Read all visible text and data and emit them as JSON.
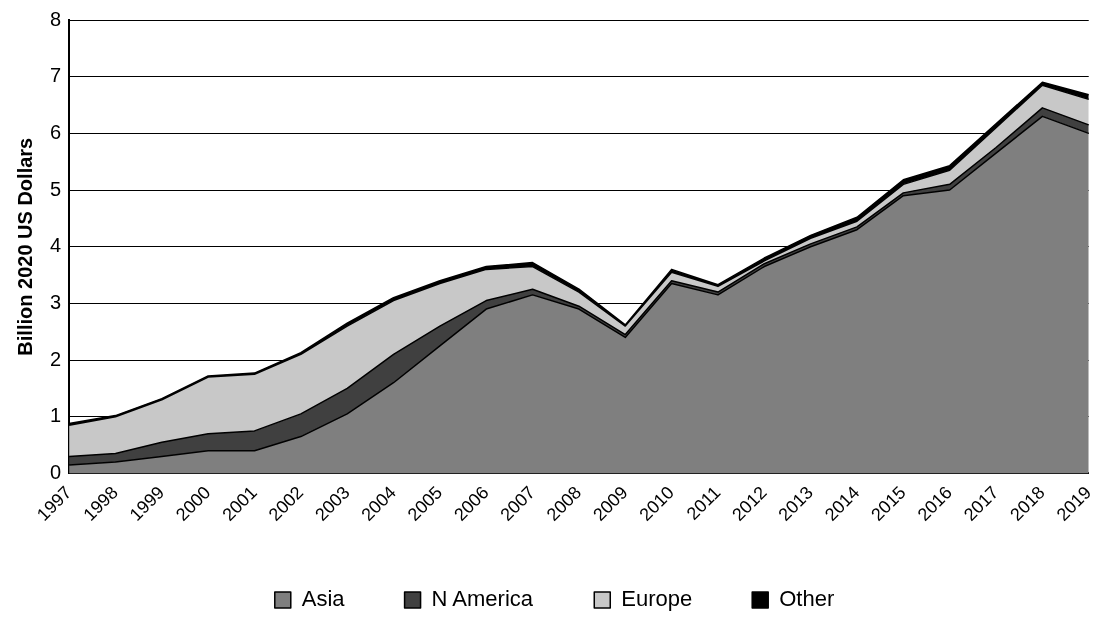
{
  "chart_data": {
    "type": "area",
    "stacked": true,
    "ylabel": "Billion 2020 US Dollars",
    "categories": [
      "1997",
      "1998",
      "1999",
      "2000",
      "2001",
      "2002",
      "2003",
      "2004",
      "2005",
      "2006",
      "2007",
      "2008",
      "2009",
      "2010",
      "2011",
      "2012",
      "2013",
      "2014",
      "2015",
      "2016",
      "2017",
      "2018",
      "2019"
    ],
    "series": [
      {
        "name": "Asia",
        "color": "#7f7f7f",
        "values": [
          0.15,
          0.2,
          0.3,
          0.4,
          0.4,
          0.65,
          1.05,
          1.6,
          2.25,
          2.9,
          3.15,
          2.9,
          2.4,
          3.35,
          3.15,
          3.65,
          4.0,
          4.3,
          4.9,
          5.0,
          5.65,
          6.3,
          6.0
        ]
      },
      {
        "name": "N America",
        "color": "#404040",
        "values": [
          0.15,
          0.15,
          0.25,
          0.3,
          0.35,
          0.4,
          0.45,
          0.5,
          0.35,
          0.15,
          0.1,
          0.05,
          0.05,
          0.05,
          0.05,
          0.05,
          0.05,
          0.05,
          0.05,
          0.1,
          0.1,
          0.15,
          0.15
        ]
      },
      {
        "name": "Europe",
        "color": "#c8c8c8",
        "values": [
          0.55,
          0.65,
          0.75,
          1.0,
          1.0,
          1.05,
          1.1,
          0.95,
          0.75,
          0.55,
          0.4,
          0.25,
          0.15,
          0.15,
          0.1,
          0.05,
          0.1,
          0.1,
          0.15,
          0.25,
          0.35,
          0.4,
          0.45
        ]
      },
      {
        "name": "Other",
        "color": "#000000",
        "values": [
          0.03,
          0.02,
          0.02,
          0.02,
          0.02,
          0.03,
          0.05,
          0.05,
          0.05,
          0.05,
          0.07,
          0.05,
          0.02,
          0.05,
          0.03,
          0.05,
          0.05,
          0.07,
          0.08,
          0.08,
          0.07,
          0.05,
          0.08
        ]
      }
    ],
    "ylim": [
      0,
      8
    ],
    "yticks": [
      0,
      1,
      2,
      3,
      4,
      5,
      6,
      7,
      8
    ],
    "grid": "y",
    "legend": "bottom"
  }
}
